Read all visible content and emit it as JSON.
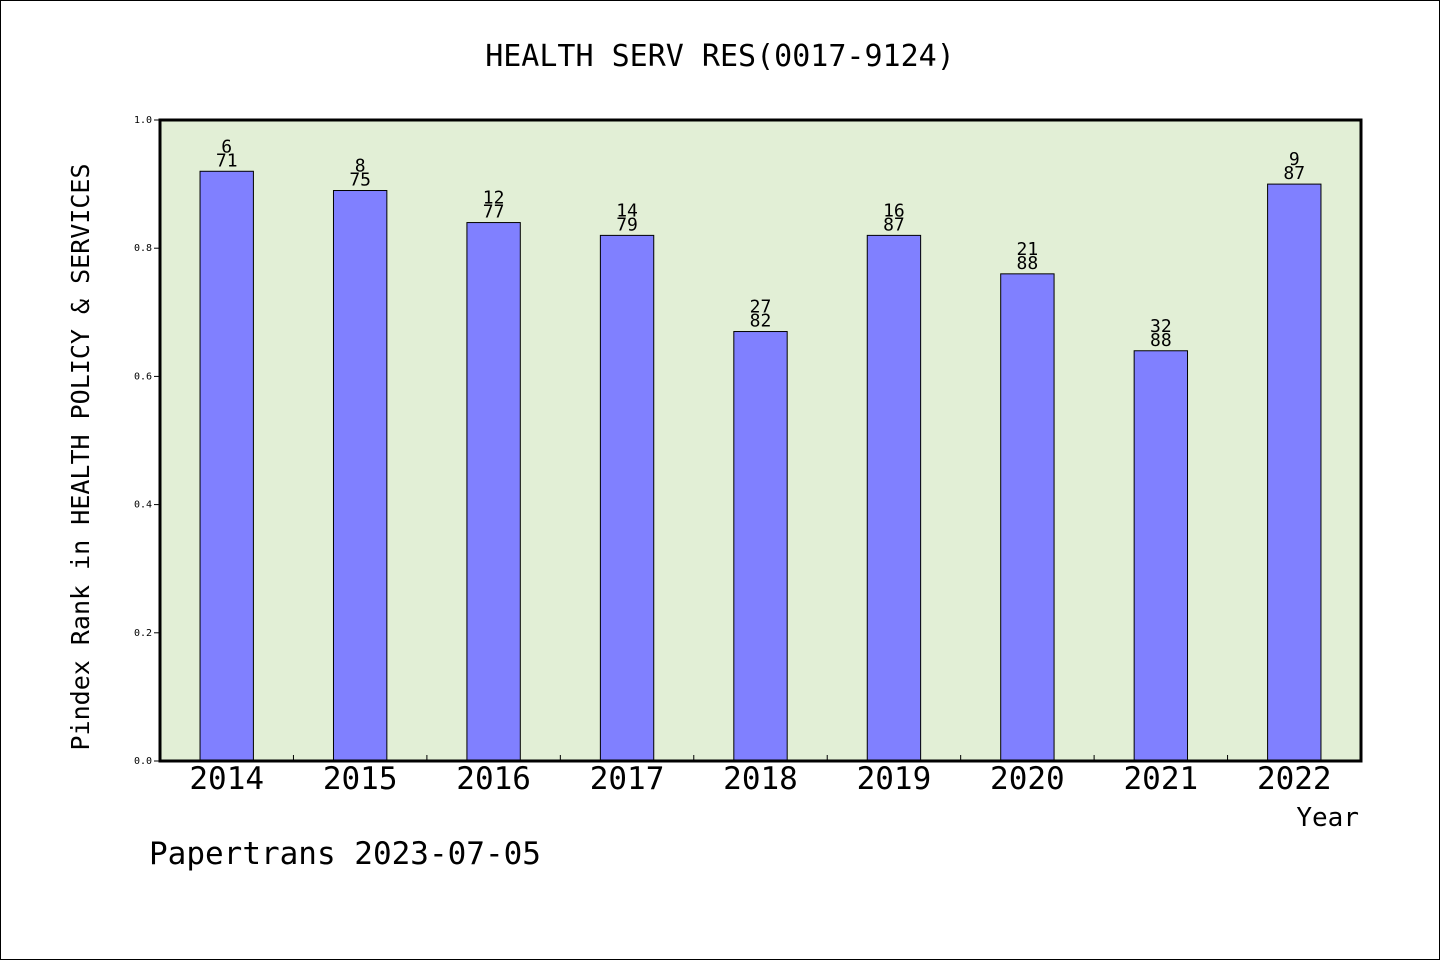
{
  "chart_data": {
    "type": "bar",
    "title": "HEALTH SERV RES(0017-9124)",
    "xlabel": "Year",
    "ylabel": "Pindex Rank in HEALTH POLICY & SERVICES",
    "categories": [
      "2014",
      "2015",
      "2016",
      "2017",
      "2018",
      "2019",
      "2020",
      "2021",
      "2022"
    ],
    "values": [
      0.92,
      0.89,
      0.84,
      0.82,
      0.67,
      0.82,
      0.76,
      0.64,
      0.9
    ],
    "rank_labels": [
      "6",
      "8",
      "12",
      "14",
      "27",
      "16",
      "21",
      "32",
      "9"
    ],
    "total_labels": [
      "71",
      "75",
      "77",
      "79",
      "82",
      "87",
      "88",
      "88",
      "87"
    ],
    "ylim": [
      0,
      1.0
    ],
    "yticks": [
      "0.0",
      "0.2",
      "0.4",
      "0.6",
      "0.8",
      "1.0"
    ],
    "grid": false,
    "legend": "none",
    "colors": {
      "bar": "#8080ff",
      "plot_background": "#e2efd6",
      "axis": "#000000"
    }
  },
  "footer": {
    "credit": "Papertrans 2023-07-05"
  }
}
